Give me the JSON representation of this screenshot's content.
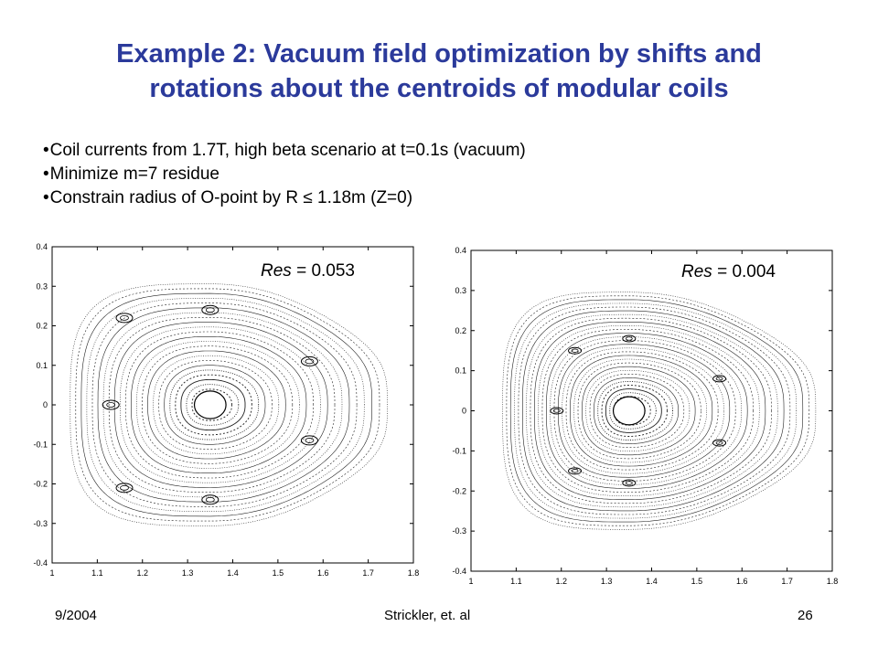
{
  "slide": {
    "title_line1": "Example 2: Vacuum field optimization by shifts and",
    "title_line2": "rotations about the centroids of modular coils",
    "bullets": [
      "Coil currents from 1.7T, high beta scenario at t=0.1s (vacuum)",
      "Minimize m=7 residue",
      "Constrain radius of O-point by R ≤ 1.18m (Z=0)"
    ],
    "colors": {
      "title": "#2b3a9b",
      "text": "#000000"
    }
  },
  "chart_data": [
    {
      "type": "scatter",
      "title": "",
      "xlabel": "",
      "ylabel": "",
      "annotation_label": "Res",
      "annotation_value": "= 0.053",
      "xlim": [
        1,
        1.8
      ],
      "ylim": [
        -0.4,
        0.4
      ],
      "xticks": [
        "1",
        "1.1",
        "1.2",
        "1.3",
        "1.4",
        "1.5",
        "1.6",
        "1.7",
        "1.8"
      ],
      "yticks": [
        "0.4",
        "0.3",
        "0.2",
        "0.1",
        "0",
        "-0.1",
        "-0.2",
        "-0.3",
        "-0.4"
      ],
      "magnetic_axis": [
        1.35,
        0.0
      ],
      "island_chain_centers": [
        [
          1.16,
          0.22
        ],
        [
          1.35,
          0.24
        ],
        [
          1.57,
          0.11
        ],
        [
          1.13,
          0.0
        ],
        [
          1.57,
          -0.09
        ],
        [
          1.35,
          -0.24
        ],
        [
          1.16,
          -0.21
        ]
      ],
      "outer_boundary_r_range": [
        1.04,
        1.72
      ],
      "outer_boundary_z_range": [
        -0.3,
        0.3
      ]
    },
    {
      "type": "scatter",
      "title": "",
      "xlabel": "",
      "ylabel": "",
      "annotation_label": "Res",
      "annotation_value": "= 0.004",
      "xlim": [
        1,
        1.8
      ],
      "ylim": [
        -0.4,
        0.4
      ],
      "xticks": [
        "1",
        "1.1",
        "1.2",
        "1.3",
        "1.4",
        "1.5",
        "1.6",
        "1.7",
        "1.8"
      ],
      "yticks": [
        "0.4",
        "0.3",
        "0.2",
        "0.1",
        "0",
        "-0.1",
        "-0.2",
        "-0.3",
        "-0.4"
      ],
      "magnetic_axis": [
        1.35,
        0.0
      ],
      "island_chain_centers": [
        [
          1.23,
          0.15
        ],
        [
          1.35,
          0.18
        ],
        [
          1.55,
          0.08
        ],
        [
          1.19,
          0.0
        ],
        [
          1.55,
          -0.08
        ],
        [
          1.35,
          -0.18
        ],
        [
          1.23,
          -0.15
        ]
      ],
      "outer_boundary_r_range": [
        1.07,
        1.74
      ],
      "outer_boundary_z_range": [
        -0.29,
        0.29
      ]
    }
  ],
  "footer": {
    "date": "9/2004",
    "authors": "Strickler, et. al",
    "page": "26"
  }
}
